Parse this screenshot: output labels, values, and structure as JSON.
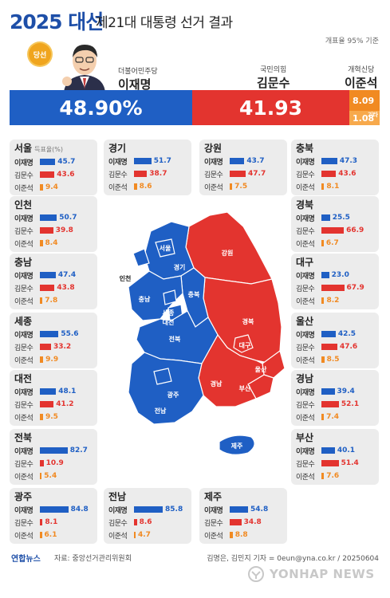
{
  "header": {
    "year_title": "2025 대선",
    "title": "제21대 대통령 선거 결과",
    "note": "개표율 95% 기준"
  },
  "winner_badge": "당선",
  "candidates": [
    {
      "party": "더불어민주당",
      "name": "이재명"
    },
    {
      "party": "국민의힘",
      "name": "김문수"
    },
    {
      "party": "개혁신당",
      "name": "이준석"
    }
  ],
  "national": {
    "lee_jm": "48.90%",
    "kim_ms": "41.93",
    "lee_js": "8.09",
    "other": "1.08",
    "other_label": "기타",
    "lee_jm_value": 48.9,
    "kim_ms_value": 41.93,
    "lee_js_value": 8.09,
    "other_value": 1.08
  },
  "row_labels": {
    "lee_jm": "이재명",
    "kim_ms": "김문수",
    "lee_js": "이준석"
  },
  "vote_rate_note": "득표율(%)",
  "regions": [
    {
      "name": "서울",
      "lee_jm": 45.7,
      "kim_ms": 43.6,
      "lee_js": 9.4
    },
    {
      "name": "경기",
      "lee_jm": 51.7,
      "kim_ms": 38.7,
      "lee_js": 8.6
    },
    {
      "name": "강원",
      "lee_jm": 43.7,
      "kim_ms": 47.7,
      "lee_js": 7.5
    },
    {
      "name": "충북",
      "lee_jm": 47.3,
      "kim_ms": 43.6,
      "lee_js": 8.1
    },
    {
      "name": "인천",
      "lee_jm": 50.7,
      "kim_ms": 39.8,
      "lee_js": 8.4
    },
    {
      "name": "경북",
      "lee_jm": 25.5,
      "kim_ms": 66.9,
      "lee_js": 6.7
    },
    {
      "name": "충남",
      "lee_jm": 47.4,
      "kim_ms": 43.8,
      "lee_js": 7.8
    },
    {
      "name": "대구",
      "lee_jm": 23.0,
      "kim_ms": 67.9,
      "lee_js": 8.2
    },
    {
      "name": "세종",
      "lee_jm": 55.6,
      "kim_ms": 33.2,
      "lee_js": 9.9
    },
    {
      "name": "울산",
      "lee_jm": 42.5,
      "kim_ms": 47.6,
      "lee_js": 8.5
    },
    {
      "name": "대전",
      "lee_jm": 48.1,
      "kim_ms": 41.2,
      "lee_js": 9.5
    },
    {
      "name": "경남",
      "lee_jm": 39.4,
      "kim_ms": 52.1,
      "lee_js": 7.4
    },
    {
      "name": "전북",
      "lee_jm": 82.7,
      "kim_ms": 10.9,
      "lee_js": 5.4
    },
    {
      "name": "부산",
      "lee_jm": 40.1,
      "kim_ms": 51.4,
      "lee_js": 7.6
    },
    {
      "name": "광주",
      "lee_jm": 84.8,
      "kim_ms": 8.1,
      "lee_js": 6.1
    },
    {
      "name": "전남",
      "lee_jm": 85.8,
      "kim_ms": 8.6,
      "lee_js": 4.7
    },
    {
      "name": "제주",
      "lee_jm": 54.8,
      "kim_ms": 34.8,
      "lee_js": 8.8
    }
  ],
  "map_labels": {
    "seoul": "서울",
    "incheon": "인천",
    "gyeonggi": "경기",
    "gangwon": "강원",
    "chungbuk": "충북",
    "chungnam": "충남",
    "sejong": "세종",
    "daejeon": "대전",
    "gyeongbuk": "경북",
    "daegu": "대구",
    "jeonbuk": "전북",
    "ulsan": "울산",
    "gwangju": "광주",
    "gyeongnam": "경남",
    "busan": "부산",
    "jeonnam": "전남",
    "jeju": "제주"
  },
  "footer": {
    "logo": "연합뉴스",
    "source": "자료: 중앙선거관리위원회",
    "credit": "김명은, 김민지 기자 = 0eun@yna.co.kr / 20250604",
    "watermark": "YONHAP NEWS"
  },
  "colors": {
    "lee_jm": "#1f5fc4",
    "kim_ms": "#e3342f",
    "lee_js": "#f18a22"
  }
}
